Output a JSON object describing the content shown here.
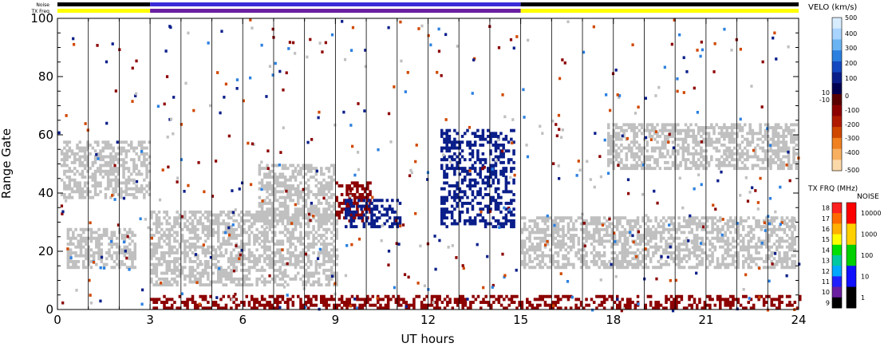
{
  "chart_data": {
    "type": "scatter",
    "title": "",
    "xlabel": "UT hours",
    "ylabel": "Range Gate",
    "xlim": [
      0,
      24
    ],
    "ylim": [
      0,
      100
    ],
    "x_ticks": [
      0,
      3,
      6,
      9,
      12,
      15,
      18,
      21,
      24
    ],
    "y_ticks": [
      0,
      20,
      40,
      60,
      80,
      100
    ],
    "vertical_scan_lines_every_hours": 1,
    "noise_label": "Noise",
    "txfreq_label": "TX Freq",
    "txfreq_segments": [
      {
        "start": 0,
        "end": 3,
        "color": "#ffff00"
      },
      {
        "start": 3,
        "end": 15,
        "color": "#6a1fa0"
      },
      {
        "start": 15,
        "end": 24,
        "color": "#ffff00"
      }
    ],
    "noise_segments": [
      {
        "start": 0,
        "end": 3,
        "color": "#000000"
      },
      {
        "start": 3,
        "end": 15,
        "color": "#3a2cd8"
      },
      {
        "start": 15,
        "end": 24,
        "color": "#000000"
      }
    ],
    "velocity_colorbar": {
      "title": "VELO (km/s)",
      "ticks": [
        "500",
        "400",
        "300",
        "200",
        "100",
        "10",
        "0",
        "-10",
        "-100",
        "-200",
        "-300",
        "-400",
        "-500"
      ],
      "colors": [
        "#d8ecff",
        "#a8d4ff",
        "#6ab4f4",
        "#2c80e0",
        "#1448c0",
        "#0a1e8a",
        "#000050",
        "#5a0000",
        "#8c0000",
        "#b01a00",
        "#d04800",
        "#f08020",
        "#f8b060",
        "#fbd8a8"
      ]
    },
    "txfreq_colorbar": {
      "title": "TX FRQ (MHz)",
      "ticks": [
        "18",
        "17",
        "16",
        "15",
        "14",
        "13",
        "12",
        "11",
        "10",
        "9"
      ],
      "colors": [
        "#ff2020",
        "#ff6a00",
        "#ffb000",
        "#ffff00",
        "#00e000",
        "#00c8a0",
        "#00a8ff",
        "#2020ff",
        "#6a1fa0",
        "#000000"
      ]
    },
    "noise_colorbar": {
      "title": "NOISE",
      "ticks": [
        "10000",
        "1000",
        "100",
        "10",
        "1"
      ],
      "colors": [
        "#ff0000",
        "#ffd000",
        "#00d000",
        "#1010ff",
        "#000000"
      ]
    },
    "regions": [
      {
        "label": "ground scatter",
        "color": "#c0c0c0",
        "x": [
          0.1,
          3.0
        ],
        "y": [
          38,
          58
        ]
      },
      {
        "label": "ground scatter",
        "color": "#c0c0c0",
        "x": [
          0.3,
          2.5
        ],
        "y": [
          14,
          28
        ]
      },
      {
        "label": "ground scatter",
        "color": "#c0c0c0",
        "x": [
          3.0,
          9.0
        ],
        "y": [
          8,
          34
        ]
      },
      {
        "label": "ground scatter",
        "color": "#c0c0c0",
        "x": [
          6.5,
          9.0
        ],
        "y": [
          30,
          50
        ]
      },
      {
        "label": "ground scatter",
        "color": "#c0c0c0",
        "x": [
          15.0,
          23.9
        ],
        "y": [
          14,
          32
        ]
      },
      {
        "label": "ground scatter",
        "color": "#c0c0c0",
        "x": [
          17.8,
          23.9
        ],
        "y": [
          48,
          64
        ]
      },
      {
        "label": "negative velocity",
        "color": "#8c0000",
        "x": [
          9.0,
          10.1
        ],
        "y": [
          30,
          44
        ]
      },
      {
        "label": "positive velocity",
        "color": "#0a1e8a",
        "x": [
          9.3,
          11.1
        ],
        "y": [
          28,
          38
        ]
      },
      {
        "label": "positive velocity",
        "color": "#0a1e8a",
        "x": [
          12.4,
          14.8
        ],
        "y": [
          28,
          62
        ]
      },
      {
        "label": "near-range echoes",
        "color": "#8c0000",
        "x": [
          3.0,
          24.0
        ],
        "y": [
          0,
          5
        ]
      }
    ]
  }
}
